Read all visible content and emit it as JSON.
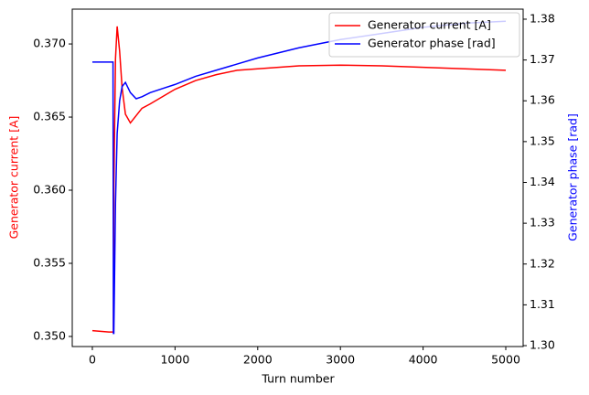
{
  "chart_data": {
    "type": "line",
    "xlabel": "Turn number",
    "ylabel": "Generator current [A]",
    "y2label": "Generator phase [rad]",
    "x": [
      0,
      100,
      200,
      250,
      255,
      260,
      280,
      300,
      330,
      360,
      400,
      460,
      530,
      600,
      700,
      850,
      1000,
      1250,
      1500,
      1750,
      2000,
      2500,
      3000,
      3500,
      4000,
      4500,
      5000
    ],
    "series": [
      {
        "name": "Generator current [A]",
        "color": "#ff0000",
        "values": [
          0.3504,
          0.35035,
          0.3503,
          0.3503,
          0.3503,
          0.36,
          0.369,
          0.3712,
          0.3695,
          0.367,
          0.3652,
          0.3646,
          0.3651,
          0.3656,
          0.3659,
          0.3664,
          0.3669,
          0.3675,
          0.3679,
          0.3682,
          0.3683,
          0.3685,
          0.36855,
          0.3685,
          0.3684,
          0.3683,
          0.3682
        ]
      },
      {
        "name": "Generator phase [rad]",
        "color": "#0000ff",
        "axis": "y2",
        "values": [
          1.3695,
          1.3695,
          1.3695,
          1.3695,
          1.303,
          1.303,
          1.335,
          1.352,
          1.36,
          1.3635,
          1.3645,
          1.362,
          1.3605,
          1.361,
          1.362,
          1.363,
          1.364,
          1.366,
          1.3675,
          1.369,
          1.3705,
          1.373,
          1.375,
          1.3765,
          1.378,
          1.379,
          1.3795
        ]
      }
    ],
    "xlim": [
      -243,
      5210
    ],
    "xticks": [
      0,
      1000,
      2000,
      3000,
      4000,
      5000
    ],
    "ylim": [
      0.34931,
      0.37238
    ],
    "yticks": [
      {
        "value": 0.35,
        "label": "0.350"
      },
      0.355,
      {
        "value": 0.36,
        "label": "0.360"
      },
      0.365,
      {
        "value": 0.37,
        "label": "0.370"
      }
    ],
    "y2lim": [
      1.29978,
      1.38246
    ],
    "y2ticks": [
      {
        "value": 1.3,
        "label": "1.30"
      },
      1.31,
      1.32,
      1.33,
      1.34,
      1.35,
      1.36,
      1.37,
      1.38
    ],
    "legend": "upper right"
  }
}
